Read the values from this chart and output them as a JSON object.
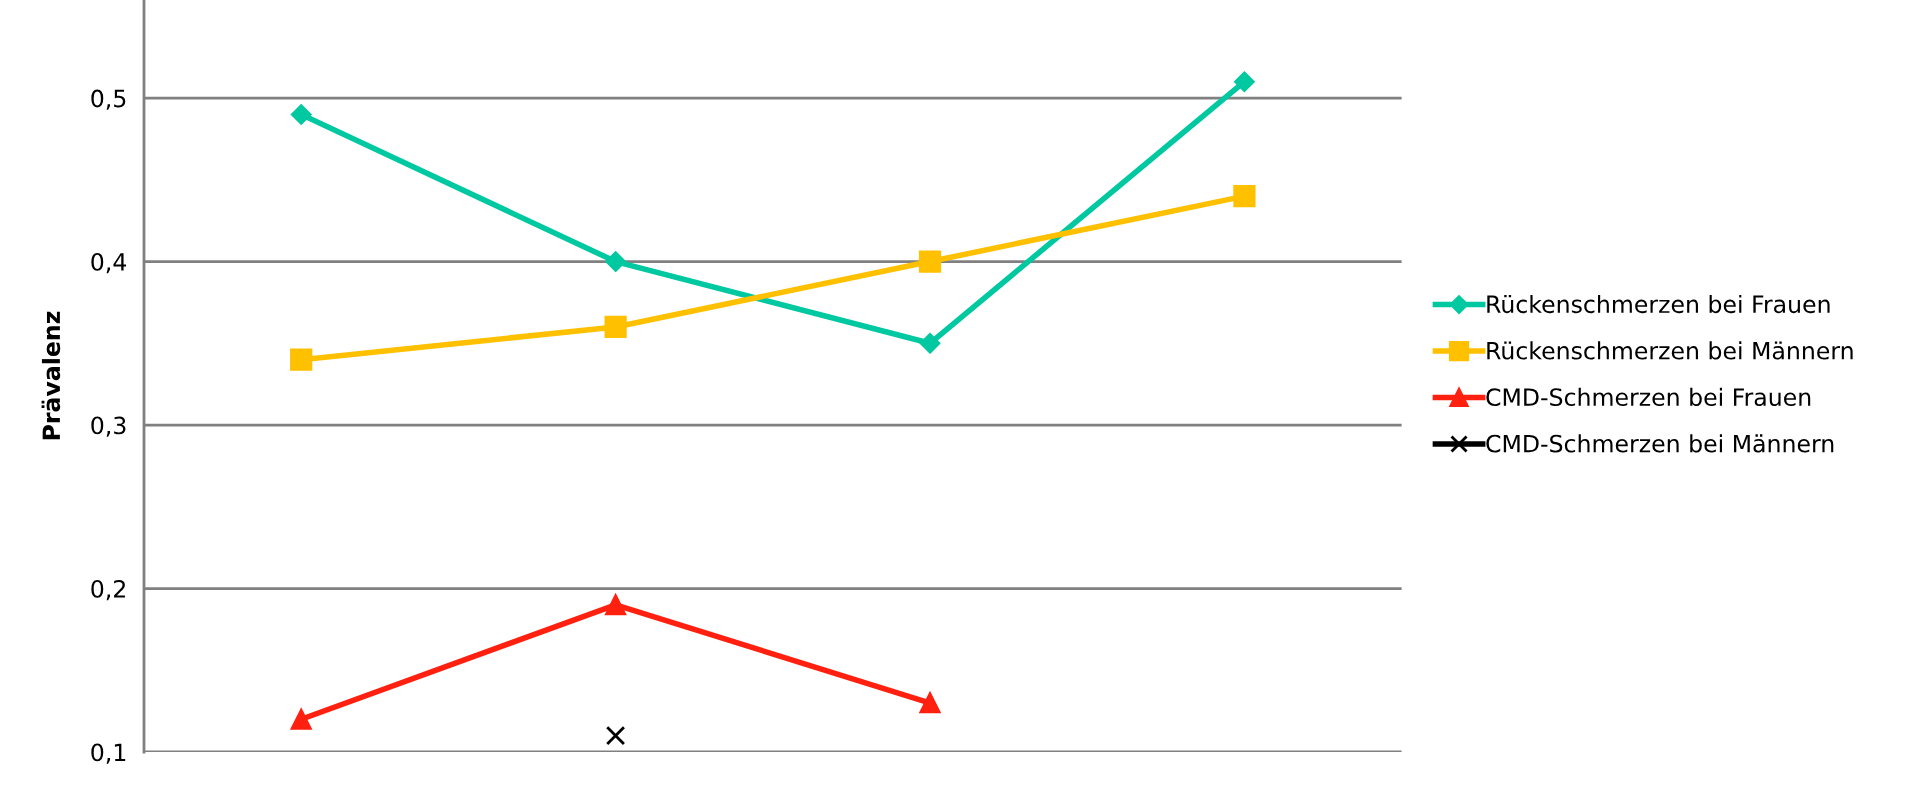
{
  "chart_data": {
    "type": "line",
    "ylabel": "Prävalenz",
    "categories": [
      null,
      null,
      null,
      null
    ],
    "series": [
      {
        "name": "Rückenschmerzen bei Frauen",
        "color": "#00c8a0",
        "marker": "diamond",
        "values": [
          0.49,
          0.4,
          0.35,
          0.51
        ]
      },
      {
        "name": "Rückenschmerzen bei Männern",
        "color": "#ffc000",
        "marker": "square",
        "values": [
          0.34,
          0.36,
          0.4,
          0.44
        ]
      },
      {
        "name": "CMD-Schmerzen bei Frauen",
        "color": "#ff2010",
        "marker": "triangle",
        "values": [
          0.12,
          0.19,
          0.13,
          null
        ]
      },
      {
        "name": "CMD-Schmerzen bei Männern",
        "color": "#000000",
        "marker": "cross",
        "values": [
          null,
          0.11,
          null,
          null
        ]
      }
    ],
    "ylim": [
      0.1,
      0.56
    ],
    "yticks": [
      {
        "value": 0.1,
        "label": "0,1"
      },
      {
        "value": 0.2,
        "label": "0,2"
      },
      {
        "value": 0.3,
        "label": "0,3"
      },
      {
        "value": 0.4,
        "label": "0,4"
      },
      {
        "value": 0.5,
        "label": "0,5"
      }
    ],
    "grid": "y",
    "legend": "right",
    "tick_labels": "y",
    "line_style": "solid"
  }
}
